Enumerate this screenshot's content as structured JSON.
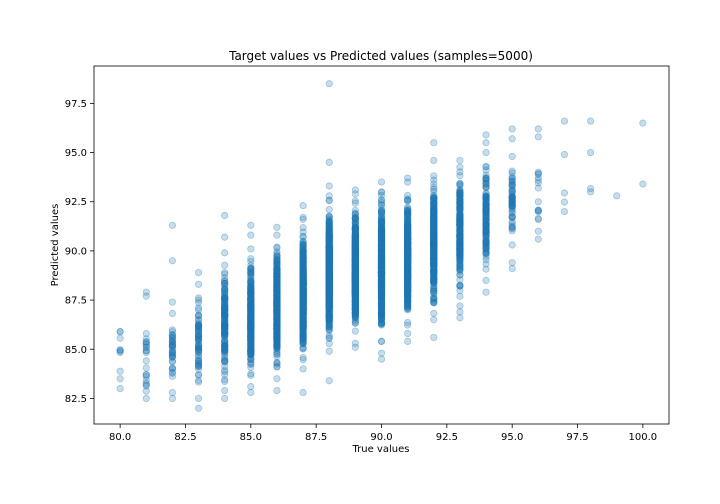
{
  "chart_data": {
    "type": "scatter",
    "title": "Target values vs Predicted values (samples=5000)",
    "xlabel": "True values",
    "ylabel": "Predicted values",
    "xlim": [
      79,
      101
    ],
    "ylim": [
      81.2,
      99.4
    ],
    "xticks": [
      80.0,
      82.5,
      85.0,
      87.5,
      90.0,
      92.5,
      95.0,
      97.5,
      100.0
    ],
    "xtick_labels": [
      "80.0",
      "82.5",
      "85.0",
      "87.5",
      "90.0",
      "92.5",
      "95.0",
      "97.5",
      "100.0"
    ],
    "yticks": [
      82.5,
      85.0,
      87.5,
      90.0,
      92.5,
      95.0,
      97.5
    ],
    "ytick_labels": [
      "82.5",
      "85.0",
      "87.5",
      "90.0",
      "92.5",
      "95.0",
      "97.5"
    ],
    "grid": false,
    "marker_color": "#1f77b4",
    "marker_alpha": 0.25,
    "columns": [
      {
        "x": 80,
        "ymin": 83.0,
        "ymax": 85.9,
        "n": 10,
        "extras": []
      },
      {
        "x": 81,
        "ymin": 82.5,
        "ymax": 85.8,
        "n": 22,
        "extras": [
          87.7,
          87.9
        ]
      },
      {
        "x": 82,
        "ymin": 82.5,
        "ymax": 87.4,
        "n": 40,
        "extras": [
          89.5,
          91.3
        ]
      },
      {
        "x": 83,
        "ymin": 82.5,
        "ymax": 88.3,
        "n": 70,
        "extras": [
          82.0,
          88.9
        ]
      },
      {
        "x": 84,
        "ymin": 82.9,
        "ymax": 89.9,
        "n": 160,
        "extras": [
          82.5,
          90.7,
          91.8
        ]
      },
      {
        "x": 85,
        "ymin": 83.1,
        "ymax": 90.1,
        "n": 300,
        "extras": [
          82.8,
          90.8,
          91.3
        ]
      },
      {
        "x": 86,
        "ymin": 83.5,
        "ymax": 90.8,
        "n": 450,
        "extras": [
          82.9,
          91.2
        ]
      },
      {
        "x": 87,
        "ymin": 84.0,
        "ymax": 91.7,
        "n": 600,
        "extras": [
          82.8,
          92.3
        ]
      },
      {
        "x": 88,
        "ymin": 84.9,
        "ymax": 92.8,
        "n": 650,
        "extras": [
          83.4,
          93.3,
          94.5,
          98.5
        ]
      },
      {
        "x": 89,
        "ymin": 85.3,
        "ymax": 92.9,
        "n": 650,
        "extras": [
          85.1,
          93.1
        ]
      },
      {
        "x": 90,
        "ymin": 85.4,
        "ymax": 93.0,
        "n": 600,
        "extras": [
          84.5,
          84.8,
          93.5
        ]
      },
      {
        "x": 91,
        "ymin": 85.8,
        "ymax": 93.5,
        "n": 500,
        "extras": [
          85.4,
          93.7
        ]
      },
      {
        "x": 92,
        "ymin": 86.5,
        "ymax": 94.6,
        "n": 380,
        "extras": [
          85.6,
          95.5
        ]
      },
      {
        "x": 93,
        "ymin": 87.2,
        "ymax": 94.6,
        "n": 250,
        "extras": [
          86.6,
          86.9
        ]
      },
      {
        "x": 94,
        "ymin": 88.5,
        "ymax": 95.0,
        "n": 140,
        "extras": [
          87.9,
          95.5,
          95.9
        ]
      },
      {
        "x": 95,
        "ymin": 90.3,
        "ymax": 94.8,
        "n": 60,
        "extras": [
          89.1,
          89.4,
          95.7,
          96.2
        ]
      },
      {
        "x": 96,
        "ymin": 91.6,
        "ymax": 94.0,
        "n": 14,
        "extras": [
          90.6,
          91.0,
          95.8,
          96.2
        ]
      },
      {
        "x": 97,
        "ymin": 92.0,
        "ymax": 94.9,
        "n": 4,
        "extras": [
          96.6
        ]
      },
      {
        "x": 98,
        "ymin": 93.0,
        "ymax": 95.0,
        "n": 3,
        "extras": [
          96.6
        ]
      },
      {
        "x": 99,
        "ymin": 92.8,
        "ymax": 92.8,
        "n": 1,
        "extras": []
      },
      {
        "x": 100,
        "ymin": 93.4,
        "ymax": 93.4,
        "n": 1,
        "extras": [
          96.5
        ]
      }
    ]
  }
}
